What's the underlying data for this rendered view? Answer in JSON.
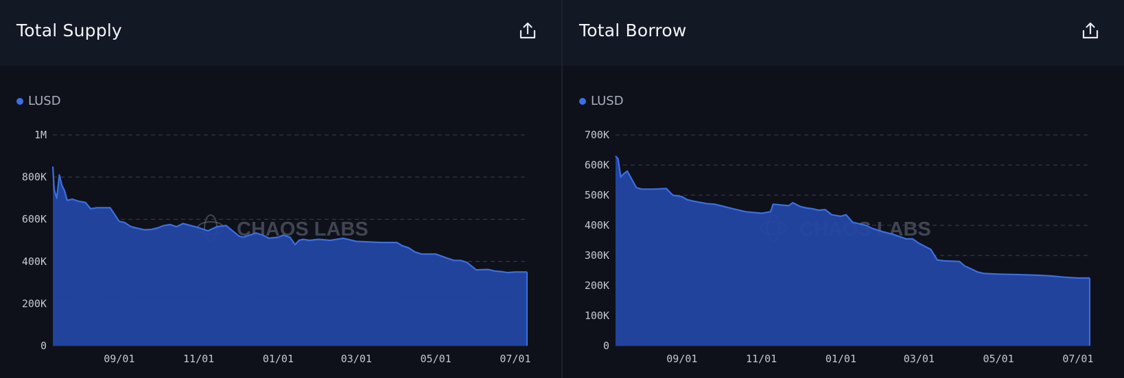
{
  "chart_data": [
    {
      "type": "area",
      "title": "Total Supply",
      "legend": [
        "LUSD"
      ],
      "legend_position": "top-left",
      "grid": true,
      "watermark": "CHAOS LABS",
      "color": "#3b6fe6",
      "fill_color": "#2347a3",
      "ylim": [
        0,
        1000000
      ],
      "y_ticks": [
        0,
        200000,
        400000,
        600000,
        800000,
        1000000
      ],
      "y_tick_labels": [
        "0",
        "200K",
        "400K",
        "600K",
        "800K",
        "1M"
      ],
      "x_range": [
        "2023-07-12",
        "2024-07-10"
      ],
      "x_ticks": [
        "2023-09-01",
        "2023-11-01",
        "2024-01-01",
        "2024-03-01",
        "2024-05-01",
        "2024-07-01"
      ],
      "x_tick_labels": [
        "09/01",
        "11/01",
        "01/01",
        "03/01",
        "05/01",
        "07/01"
      ],
      "series": [
        {
          "name": "LUSD",
          "x": [
            "2023-07-12",
            "2023-07-13",
            "2023-07-15",
            "2023-07-17",
            "2023-07-19",
            "2023-07-21",
            "2023-07-23",
            "2023-07-27",
            "2023-08-01",
            "2023-08-06",
            "2023-08-10",
            "2023-08-15",
            "2023-08-20",
            "2023-08-25",
            "2023-09-01",
            "2023-09-05",
            "2023-09-10",
            "2023-09-20",
            "2023-09-26",
            "2023-10-01",
            "2023-10-05",
            "2023-10-10",
            "2023-10-15",
            "2023-10-20",
            "2023-11-01",
            "2023-11-08",
            "2023-11-15",
            "2023-11-22",
            "2023-11-28",
            "2023-12-02",
            "2023-12-05",
            "2023-12-10",
            "2023-12-15",
            "2023-12-20",
            "2023-12-25",
            "2024-01-01",
            "2024-01-05",
            "2024-01-10",
            "2024-01-14",
            "2024-01-17",
            "2024-01-20",
            "2024-01-25",
            "2024-02-01",
            "2024-02-10",
            "2024-02-20",
            "2024-03-01",
            "2024-03-10",
            "2024-03-20",
            "2024-04-01",
            "2024-04-05",
            "2024-04-10",
            "2024-04-15",
            "2024-04-20",
            "2024-05-01",
            "2024-05-10",
            "2024-05-15",
            "2024-05-20",
            "2024-05-25",
            "2024-06-01",
            "2024-06-10",
            "2024-06-15",
            "2024-06-20",
            "2024-06-25",
            "2024-07-01",
            "2024-07-10"
          ],
          "values": [
            850000,
            740000,
            700000,
            810000,
            760000,
            735000,
            690000,
            695000,
            685000,
            680000,
            650000,
            655000,
            655000,
            655000,
            590000,
            585000,
            565000,
            550000,
            552000,
            560000,
            570000,
            575000,
            565000,
            580000,
            560000,
            545000,
            565000,
            570000,
            540000,
            520000,
            515000,
            525000,
            535000,
            525000,
            510000,
            515000,
            525000,
            515000,
            480000,
            500000,
            505000,
            500000,
            505000,
            500000,
            510000,
            495000,
            493000,
            490000,
            490000,
            475000,
            465000,
            445000,
            435000,
            435000,
            415000,
            405000,
            405000,
            395000,
            360000,
            362000,
            355000,
            352000,
            347000,
            350000,
            350000
          ]
        }
      ]
    },
    {
      "type": "area",
      "title": "Total Borrow",
      "legend": [
        "LUSD"
      ],
      "legend_position": "top-left",
      "grid": true,
      "watermark": "CHAOS LABS",
      "color": "#3b6fe6",
      "fill_color": "#2347a3",
      "ylim": [
        0,
        700000
      ],
      "y_ticks": [
        0,
        100000,
        200000,
        300000,
        400000,
        500000,
        600000,
        700000
      ],
      "y_tick_labels": [
        "0",
        "100K",
        "200K",
        "300K",
        "400K",
        "500K",
        "600K",
        "700K"
      ],
      "x_range": [
        "2023-07-12",
        "2024-07-10"
      ],
      "x_ticks": [
        "2023-09-01",
        "2023-11-01",
        "2024-01-01",
        "2024-03-01",
        "2024-05-01",
        "2024-07-01"
      ],
      "x_tick_labels": [
        "09/01",
        "11/01",
        "01/01",
        "03/01",
        "05/01",
        "07/01"
      ],
      "series": [
        {
          "name": "LUSD",
          "x": [
            "2023-07-12",
            "2023-07-14",
            "2023-07-16",
            "2023-07-18",
            "2023-07-21",
            "2023-07-28",
            "2023-08-01",
            "2023-08-10",
            "2023-08-20",
            "2023-08-25",
            "2023-09-01",
            "2023-09-05",
            "2023-09-10",
            "2023-09-20",
            "2023-09-26",
            "2023-10-01",
            "2023-10-10",
            "2023-10-20",
            "2023-11-01",
            "2023-11-08",
            "2023-11-10",
            "2023-11-15",
            "2023-11-22",
            "2023-11-25",
            "2023-12-01",
            "2023-12-05",
            "2023-12-10",
            "2023-12-15",
            "2023-12-20",
            "2023-12-25",
            "2024-01-01",
            "2024-01-05",
            "2024-01-10",
            "2024-01-20",
            "2024-01-25",
            "2024-02-01",
            "2024-02-10",
            "2024-02-20",
            "2024-02-25",
            "2024-03-01",
            "2024-03-10",
            "2024-03-15",
            "2024-03-20",
            "2024-04-01",
            "2024-04-05",
            "2024-04-10",
            "2024-04-15",
            "2024-04-20",
            "2024-05-01",
            "2024-05-10",
            "2024-05-20",
            "2024-06-01",
            "2024-06-10",
            "2024-06-20",
            "2024-07-01",
            "2024-07-10"
          ],
          "values": [
            630000,
            620000,
            560000,
            570000,
            580000,
            525000,
            520000,
            520000,
            522000,
            500000,
            495000,
            485000,
            480000,
            472000,
            470000,
            465000,
            455000,
            445000,
            440000,
            445000,
            470000,
            468000,
            465000,
            475000,
            462000,
            458000,
            455000,
            450000,
            452000,
            435000,
            430000,
            435000,
            410000,
            400000,
            390000,
            380000,
            370000,
            355000,
            355000,
            340000,
            320000,
            285000,
            282000,
            280000,
            265000,
            255000,
            245000,
            240000,
            238000,
            237000,
            236000,
            234000,
            232000,
            228000,
            225000,
            225000
          ]
        }
      ]
    }
  ]
}
